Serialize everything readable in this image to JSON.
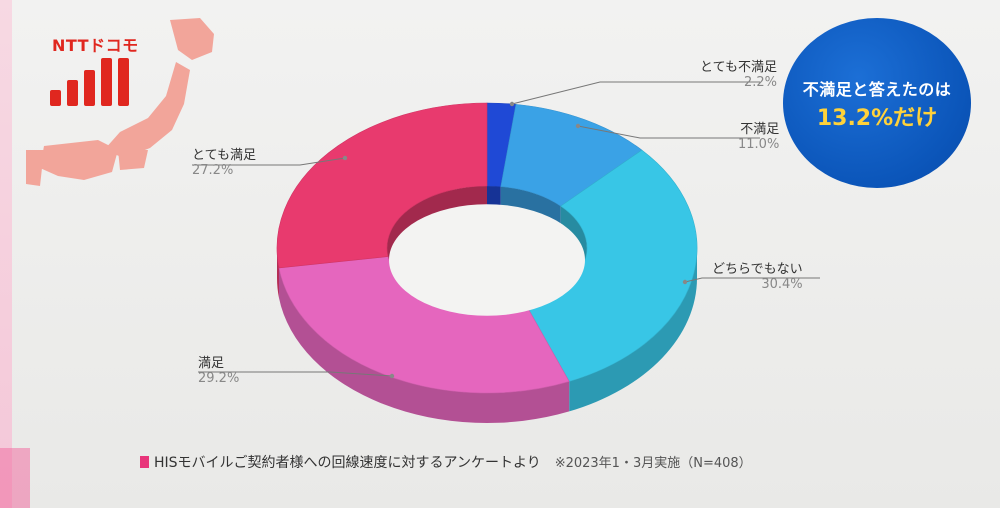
{
  "logo": {
    "text": "NTTドコモ",
    "color": "#e0271f"
  },
  "callout": {
    "line1": "不満足と答えたのは",
    "line2": "13.2%だけ",
    "bg_color": "#0b55b9",
    "highlight_color": "#ffd23a"
  },
  "footer": {
    "text": "HISモバイルご契約者様への回線速度に対するアンケートより",
    "note": "※2023年1・3月実施（N=408）"
  },
  "chart_data": {
    "type": "pie",
    "style": "3d-donut",
    "legend": "callout-labels",
    "slices": [
      {
        "label": "とても不満足",
        "value": 2.2,
        "pct_text": "2.2%",
        "color": "#1f49d6"
      },
      {
        "label": "不満足",
        "value": 11.0,
        "pct_text": "11.0%",
        "color": "#3aa2e6"
      },
      {
        "label": "どちらでもない",
        "value": 30.4,
        "pct_text": "30.4%",
        "color": "#38c6e6"
      },
      {
        "label": "満足",
        "value": 29.2,
        "pct_text": "29.2%",
        "color": "#e566be"
      },
      {
        "label": "とても満足",
        "value": 27.2,
        "pct_text": "27.2%",
        "color": "#e83a6e"
      }
    ]
  }
}
